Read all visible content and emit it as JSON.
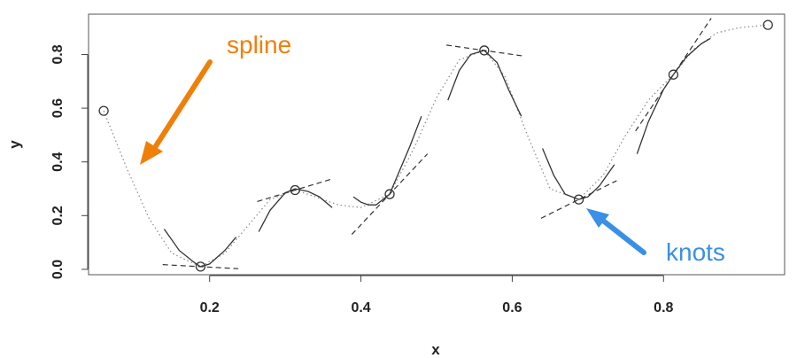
{
  "chart_data": {
    "type": "line",
    "xlabel": "x",
    "ylabel": "y",
    "xlim": [
      0.04,
      0.96
    ],
    "ylim": [
      -0.02,
      0.95
    ],
    "x_ticks": [
      0.2,
      0.4,
      0.6,
      0.8
    ],
    "x_tick_labels": [
      "0.2",
      "0.4",
      "0.6",
      "0.8"
    ],
    "y_ticks": [
      0.0,
      0.2,
      0.4,
      0.6,
      0.8
    ],
    "y_tick_labels": [
      "0.0",
      "0.2",
      "0.4",
      "0.6",
      "0.8"
    ],
    "grid": false,
    "knots": {
      "x": [
        0.06,
        0.188,
        0.313,
        0.438,
        0.563,
        0.688,
        0.813,
        0.938
      ],
      "y": [
        0.59,
        0.01,
        0.295,
        0.28,
        0.815,
        0.26,
        0.725,
        0.91
      ]
    },
    "tangent_slopes": [
      0.0,
      -0.15,
      0.85,
      3.0,
      -0.4,
      1.4,
      4.2,
      0.0
    ],
    "tangent_halfwidth": 0.05,
    "dotted_curve": {
      "x": [
        0.06,
        0.09,
        0.12,
        0.15,
        0.188,
        0.22,
        0.25,
        0.28,
        0.313,
        0.34,
        0.37,
        0.4,
        0.438,
        0.47,
        0.5,
        0.53,
        0.563,
        0.59,
        0.62,
        0.65,
        0.688,
        0.72,
        0.75,
        0.78,
        0.813,
        0.84,
        0.87,
        0.9,
        0.938
      ],
      "y": [
        0.59,
        0.38,
        0.19,
        0.06,
        0.01,
        0.06,
        0.16,
        0.26,
        0.295,
        0.27,
        0.24,
        0.23,
        0.28,
        0.45,
        0.64,
        0.78,
        0.815,
        0.72,
        0.5,
        0.3,
        0.26,
        0.35,
        0.5,
        0.63,
        0.725,
        0.82,
        0.88,
        0.9,
        0.91
      ]
    },
    "local_fits": [
      {
        "x": [
          0.14,
          0.16,
          0.18,
          0.188,
          0.2,
          0.22,
          0.235
        ],
        "y": [
          0.15,
          0.07,
          0.025,
          0.01,
          0.02,
          0.07,
          0.12
        ]
      },
      {
        "x": [
          0.265,
          0.28,
          0.3,
          0.313,
          0.33,
          0.345,
          0.362
        ],
        "y": [
          0.14,
          0.22,
          0.285,
          0.3,
          0.29,
          0.27,
          0.23
        ]
      },
      {
        "x": [
          0.39,
          0.4,
          0.41,
          0.42,
          0.438
        ],
        "y": [
          0.27,
          0.25,
          0.24,
          0.24,
          0.28
        ]
      },
      {
        "x": [
          0.438,
          0.45,
          0.465,
          0.48
        ],
        "y": [
          0.28,
          0.36,
          0.46,
          0.57
        ]
      },
      {
        "x": [
          0.515,
          0.53,
          0.545,
          0.563,
          0.58,
          0.595,
          0.612
        ],
        "y": [
          0.63,
          0.74,
          0.8,
          0.815,
          0.77,
          0.67,
          0.57
        ]
      },
      {
        "x": [
          0.64,
          0.655,
          0.67,
          0.688,
          0.7,
          0.715,
          0.735
        ],
        "y": [
          0.45,
          0.35,
          0.28,
          0.26,
          0.27,
          0.31,
          0.39
        ]
      },
      {
        "x": [
          0.765,
          0.78,
          0.8,
          0.813,
          0.83,
          0.85,
          0.862
        ],
        "y": [
          0.43,
          0.55,
          0.67,
          0.725,
          0.79,
          0.84,
          0.86
        ]
      }
    ],
    "annotations": [
      {
        "text": "spline",
        "color": "#f07f09"
      },
      {
        "text": "knots",
        "color": "#3a8fe6"
      }
    ]
  }
}
